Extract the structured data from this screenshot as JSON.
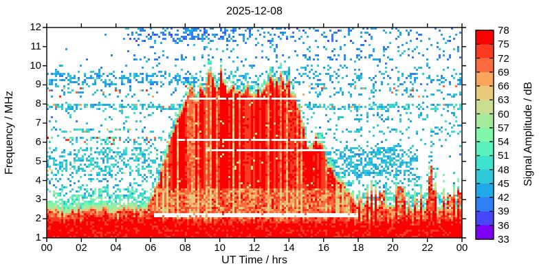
{
  "title": "2025-12-08",
  "axes": {
    "x": {
      "label": "UT Time / hrs",
      "range": [
        0,
        24
      ],
      "tick_values": [
        0,
        2,
        4,
        6,
        8,
        10,
        12,
        14,
        16,
        18,
        20,
        22,
        24
      ],
      "tick_labels": [
        "00",
        "02",
        "04",
        "06",
        "08",
        "10",
        "12",
        "14",
        "16",
        "18",
        "20",
        "22",
        "00"
      ]
    },
    "y": {
      "label": "Frequency / MHz",
      "range": [
        1,
        12
      ],
      "tick_values": [
        1,
        2,
        3,
        4,
        5,
        6,
        7,
        8,
        9,
        10,
        11,
        12
      ]
    }
  },
  "colorbar": {
    "label": "Signal Amplitude / dB",
    "range": [
      33,
      78
    ],
    "band_step_db": 3,
    "tick_values": [
      78,
      75,
      72,
      69,
      66,
      63,
      60,
      57,
      54,
      51,
      48,
      45,
      42,
      39,
      36,
      33
    ],
    "colors_low_to_high": [
      "#7d00f2",
      "#4547f8",
      "#2f7ef5",
      "#1fa9e9",
      "#2fc9da",
      "#3fe2cd",
      "#59f2bc",
      "#80f6a8",
      "#a5ea9b",
      "#cbdd8e",
      "#e9c97b",
      "#faa55e",
      "#fc6a40",
      "#fb3a22",
      "#fa0000"
    ]
  },
  "chart_data": {
    "type": "heatmap",
    "title": "2025-12-08",
    "xlabel": "UT Time / hrs",
    "ylabel": "Frequency / MHz",
    "zlabel": "Signal Amplitude / dB",
    "xlim": [
      0,
      24
    ],
    "ylim": [
      1,
      12
    ],
    "zlim": [
      33,
      78
    ],
    "description": "24-hour HF spectrogram: persistent strong band below ~2.5 MHz; strong daytime echo region ~06-16 UT reaching 9-10 MHz with ragged top; white notch gaps at fixed frequencies; blue/cyan noise speckle bands; evening scatter cloud 16-21 UT at 4-5.7 MHz; narrow strong spike near 22 UT.",
    "seed": 11,
    "main_echo_envelope_mhz_vs_hr": [
      [
        0,
        2.4
      ],
      [
        5.5,
        2.5
      ],
      [
        5.9,
        2.9
      ],
      [
        6.2,
        3.4
      ],
      [
        6.5,
        4.3
      ],
      [
        6.8,
        5.2
      ],
      [
        7.1,
        6.1
      ],
      [
        7.4,
        7.1
      ],
      [
        7.7,
        7.9
      ],
      [
        8.0,
        8.3
      ],
      [
        8.3,
        8.9
      ],
      [
        8.6,
        8.5
      ],
      [
        8.9,
        9.0
      ],
      [
        9.15,
        8.6
      ],
      [
        9.35,
        9.8
      ],
      [
        9.5,
        9.9
      ],
      [
        9.65,
        9.2
      ],
      [
        9.9,
        9.0
      ],
      [
        10.05,
        9.8
      ],
      [
        10.2,
        9.3
      ],
      [
        10.45,
        8.7
      ],
      [
        10.8,
        8.9
      ],
      [
        11.1,
        8.6
      ],
      [
        11.5,
        8.9
      ],
      [
        11.8,
        8.6
      ],
      [
        12.1,
        8.9
      ],
      [
        12.4,
        8.7
      ],
      [
        12.75,
        9.1
      ],
      [
        12.95,
        9.6
      ],
      [
        13.1,
        9.0
      ],
      [
        13.35,
        9.3
      ],
      [
        13.55,
        9.7
      ],
      [
        13.75,
        9.1
      ],
      [
        13.95,
        9.3
      ],
      [
        14.15,
        8.6
      ],
      [
        14.4,
        8.3
      ],
      [
        14.65,
        7.6
      ],
      [
        14.9,
        6.4
      ],
      [
        15.1,
        5.5
      ],
      [
        15.35,
        6.0
      ],
      [
        15.6,
        6.3
      ],
      [
        15.85,
        5.9
      ],
      [
        16.1,
        5.2
      ],
      [
        16.5,
        4.4
      ],
      [
        17.0,
        3.8
      ],
      [
        17.6,
        3.2
      ],
      [
        18.3,
        2.9
      ],
      [
        19.2,
        2.7
      ],
      [
        20.0,
        2.5
      ],
      [
        21.0,
        2.4
      ],
      [
        24.0,
        2.35
      ]
    ],
    "bottom_band": {
      "core_top_mhz": 2.5,
      "fringe_top_mhz": 3.2
    },
    "notch_lines": [
      {
        "freq_mhz": 8.26,
        "t_range_hr": [
          7.75,
          14.7
        ]
      },
      {
        "freq_mhz": 6.13,
        "t_range_hr": [
          7.5,
          16.2
        ]
      },
      {
        "freq_mhz": 5.59,
        "t_range_hr": [
          9.2,
          16.3
        ]
      },
      {
        "freq_mhz": 2.17,
        "t_range_hr": [
          6.2,
          17.95
        ]
      }
    ],
    "noise_bands": [
      {
        "f": [
          11.3,
          12.0
        ],
        "t": [
          7.8,
          9.4
        ],
        "p": 0.5,
        "a": [
          38,
          45
        ]
      },
      {
        "f": [
          11.25,
          12.0
        ],
        "t": [
          4.5,
          7.8
        ],
        "p": 0.28,
        "a": [
          38,
          45
        ]
      },
      {
        "f": [
          11.25,
          12.0
        ],
        "t": [
          9.4,
          14.2
        ],
        "p": 0.25,
        "a": [
          38,
          45
        ]
      },
      {
        "f": [
          11.25,
          12.0
        ],
        "t": [
          14.2,
          24
        ],
        "p": 0.1,
        "a": [
          38,
          45
        ]
      },
      {
        "f": [
          10.75,
          11.25
        ],
        "t": [
          6,
          24
        ],
        "p": 0.06,
        "a": [
          40,
          46
        ]
      },
      {
        "f": [
          10.3,
          10.6
        ],
        "t": [
          5,
          24
        ],
        "p": 0.15,
        "a": [
          40,
          45
        ]
      },
      {
        "f": [
          9.0,
          9.65
        ],
        "t": [
          0,
          8.3
        ],
        "p": 0.42,
        "a": [
          41,
          47
        ]
      },
      {
        "f": [
          9.0,
          9.65
        ],
        "t": [
          8.3,
          24
        ],
        "p": 0.2,
        "a": [
          41,
          47
        ]
      },
      {
        "f": [
          9.65,
          10.1
        ],
        "t": [
          0,
          24
        ],
        "p": 0.07,
        "a": [
          42,
          47
        ]
      },
      {
        "f": [
          8.35,
          9.0
        ],
        "t": [
          0,
          24
        ],
        "p": 0.08,
        "a": [
          42,
          48
        ],
        "hot": {
          "p": 0.035,
          "a": [
            63,
            74
          ]
        }
      },
      {
        "f": [
          7.7,
          7.97
        ],
        "t": [
          0,
          24
        ],
        "p": 0.45,
        "a": [
          43,
          50
        ],
        "hot": {
          "p": 0.05,
          "a": [
            60,
            72
          ]
        }
      },
      {
        "f": [
          7.0,
          7.7
        ],
        "t": [
          0,
          24
        ],
        "p": 0.06,
        "a": [
          43,
          50
        ]
      },
      {
        "f": [
          6.45,
          6.75
        ],
        "t": [
          0,
          8
        ],
        "p": 0.28,
        "a": [
          44,
          52
        ],
        "hot": {
          "p": 0.06,
          "a": [
            60,
            70
          ]
        }
      },
      {
        "f": [
          6.45,
          6.75
        ],
        "t": [
          16,
          24
        ],
        "p": 0.14,
        "a": [
          44,
          52
        ]
      },
      {
        "f": [
          5.9,
          6.25
        ],
        "t": [
          0,
          8
        ],
        "p": 0.25,
        "a": [
          44,
          54
        ],
        "hot": {
          "p": 0.05,
          "a": [
            68,
            76
          ]
        }
      },
      {
        "f": [
          5.4,
          5.75
        ],
        "t": [
          0,
          7.6
        ],
        "p": 0.33,
        "a": [
          43,
          50
        ]
      },
      {
        "f": [
          4.25,
          5.4
        ],
        "t": [
          0,
          7.4
        ],
        "p": 0.4,
        "a": [
          43,
          50
        ],
        "hot": {
          "p": 0.02,
          "a": [
            58,
            68
          ]
        }
      },
      {
        "f": [
          3.3,
          4.25
        ],
        "t": [
          0,
          7
        ],
        "p": 0.12,
        "a": [
          43,
          50
        ]
      },
      {
        "f": [
          4.2,
          5.7
        ],
        "t": [
          15.8,
          21.4
        ],
        "p": 0.5,
        "a": [
          43,
          48
        ]
      },
      {
        "f": [
          3.4,
          4.2
        ],
        "t": [
          15.8,
          21.5
        ],
        "p": 0.17,
        "a": [
          43,
          50
        ]
      },
      {
        "f": [
          2.6,
          3.4
        ],
        "t": [
          15.5,
          24
        ],
        "p": 0.3,
        "a": [
          44,
          54
        ],
        "hot": {
          "p": 0.1,
          "a": [
            62,
            72
          ]
        }
      },
      {
        "f": [
          5.7,
          9.0
        ],
        "t": [
          16,
          24
        ],
        "p": 0.05,
        "a": [
          42,
          48
        ]
      },
      {
        "f": [
          9.65,
          12.0
        ],
        "t": [
          0,
          4.5
        ],
        "p": 0.012,
        "a": [
          40,
          46
        ]
      }
    ],
    "late_spike": {
      "t_center_hr": 22.12,
      "t_halfwidth_hr": 0.29,
      "peak_mhz": 5.2,
      "base_mhz": 2.5
    },
    "late_columns": [
      {
        "t_range_hr": [
          19.15,
          19.5
        ],
        "top_mhz": 3.5
      },
      {
        "t_range_hr": [
          20.25,
          20.5
        ],
        "top_mhz": 3.8
      },
      {
        "t_range_hr": [
          23.1,
          23.4
        ],
        "top_mhz": 3.3
      },
      {
        "t_range_hr": [
          23.65,
          23.95
        ],
        "top_mhz": 3.6
      }
    ]
  }
}
